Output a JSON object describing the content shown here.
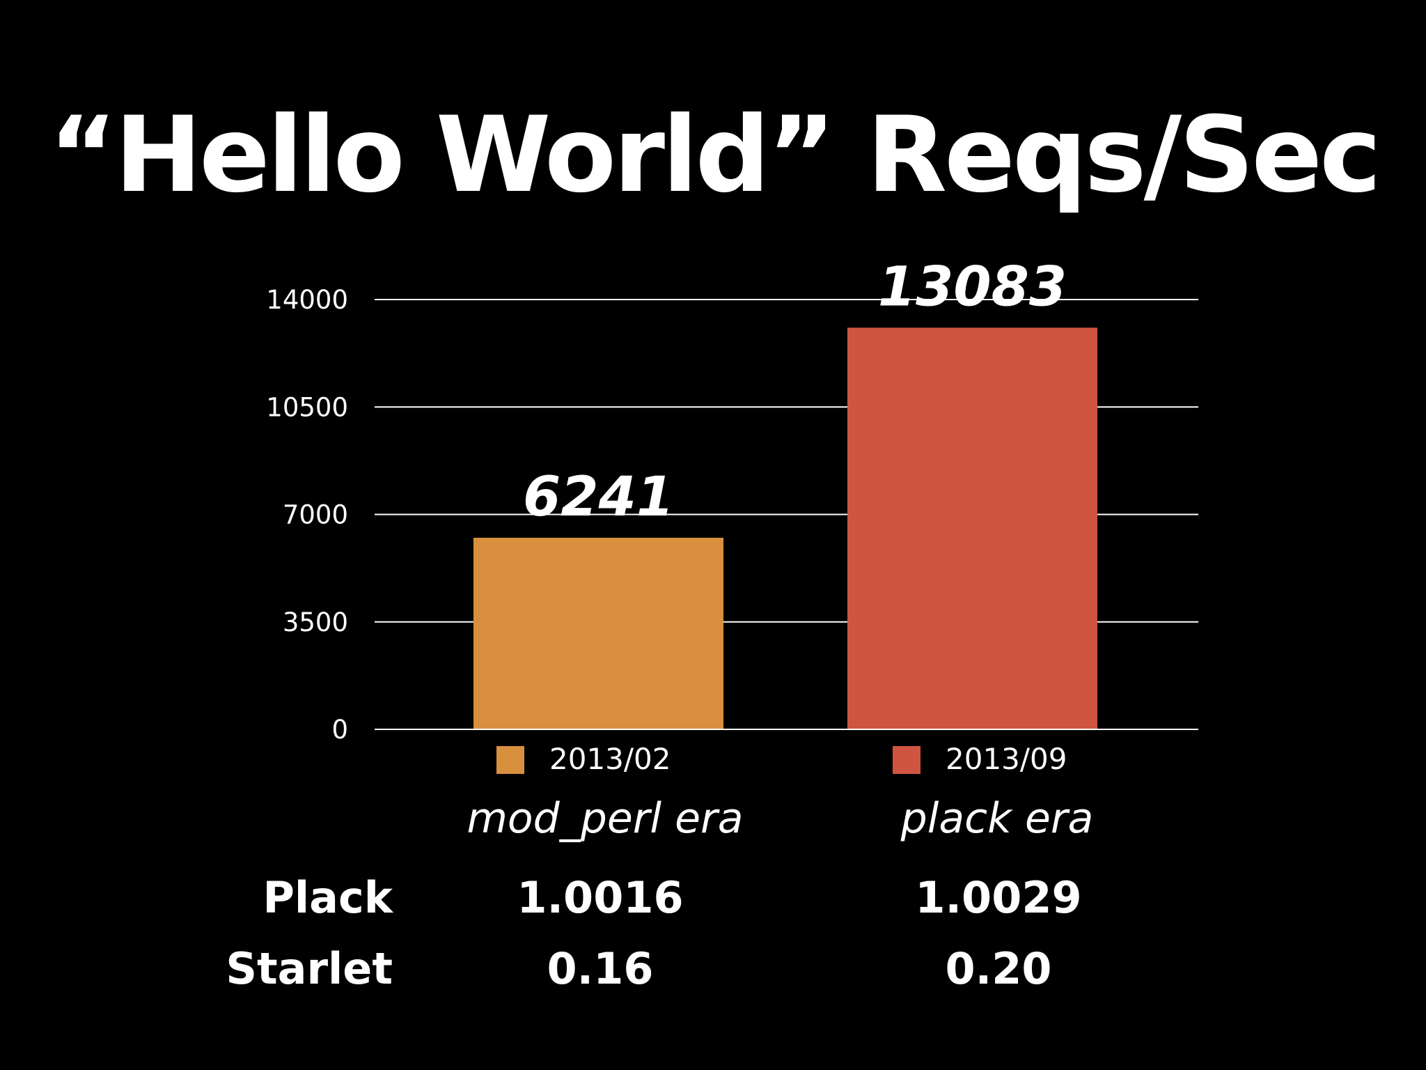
{
  "chart_data": {
    "type": "bar",
    "title": "“Hello World” Reqs/Sec",
    "series": [
      {
        "name": "2013/02",
        "color": "#d8903f",
        "values": [
          6241
        ]
      },
      {
        "name": "2013/09",
        "color": "#cf5540",
        "values": [
          13083
        ]
      }
    ],
    "ylim": [
      0,
      14000
    ],
    "yticks": [
      0,
      3500,
      7000,
      10500,
      14000
    ],
    "grid": true
  },
  "eras": [
    "mod_perl era",
    "plack era"
  ],
  "versions": {
    "rows": [
      {
        "label": "Plack",
        "values": [
          "1.0016",
          "1.0029"
        ]
      },
      {
        "label": "Starlet",
        "values": [
          "0.16",
          "0.20"
        ]
      }
    ]
  }
}
